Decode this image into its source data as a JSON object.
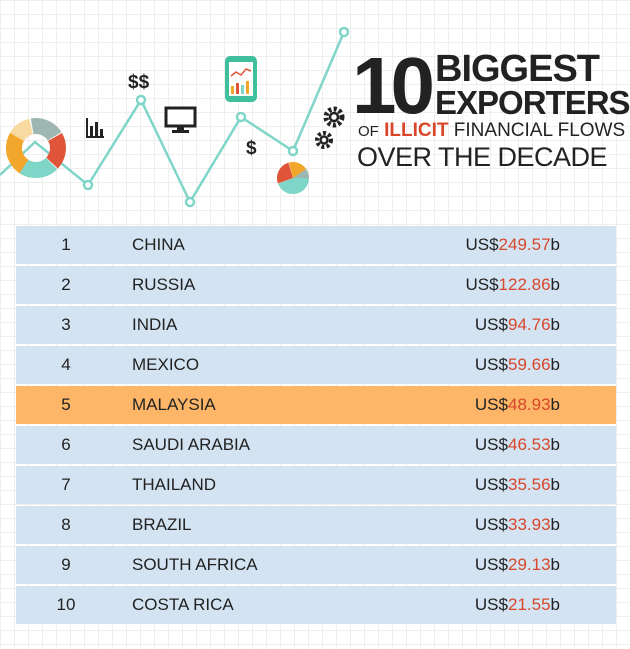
{
  "title": {
    "number": "10",
    "line1": "BIGGEST",
    "line2": "EXPORTERS",
    "line3_prefix": "OF",
    "line3_highlight": "ILLICIT",
    "line3_rest": "FINANCIAL FLOWS",
    "line4": "OVER THE DECADE"
  },
  "hero": {
    "icons": [
      "donut-chart-icon",
      "bar-chart-icon",
      "dollar-sign-icon",
      "monitor-icon",
      "tablet-chart-icon",
      "gear-icon",
      "pie-chart-icon"
    ],
    "dollar_double": "$$",
    "dollar_single": "$",
    "line_color": "#7fd6c8"
  },
  "colors": {
    "accent_red": "#d9472b",
    "highlight_row": "#fdb667",
    "row": "#d3e3f1",
    "text": "#222222"
  },
  "chart_data": {
    "type": "table",
    "unit_prefix": "US$",
    "unit_suffix": "b",
    "highlighted_rank": 5,
    "rows": [
      {
        "rank": "1",
        "country": "CHINA",
        "value": "249.57"
      },
      {
        "rank": "2",
        "country": "RUSSIA",
        "value": "122.86"
      },
      {
        "rank": "3",
        "country": "INDIA",
        "value": "94.76"
      },
      {
        "rank": "4",
        "country": "MEXICO",
        "value": "59.66"
      },
      {
        "rank": "5",
        "country": "MALAYSIA",
        "value": "48.93"
      },
      {
        "rank": "6",
        "country": "SAUDI ARABIA",
        "value": "46.53"
      },
      {
        "rank": "7",
        "country": "THAILAND",
        "value": "35.56"
      },
      {
        "rank": "8",
        "country": "BRAZIL",
        "value": "33.93"
      },
      {
        "rank": "9",
        "country": "SOUTH AFRICA",
        "value": "29.13"
      },
      {
        "rank": "10",
        "country": "COSTA RICA",
        "value": "21.55"
      }
    ]
  }
}
